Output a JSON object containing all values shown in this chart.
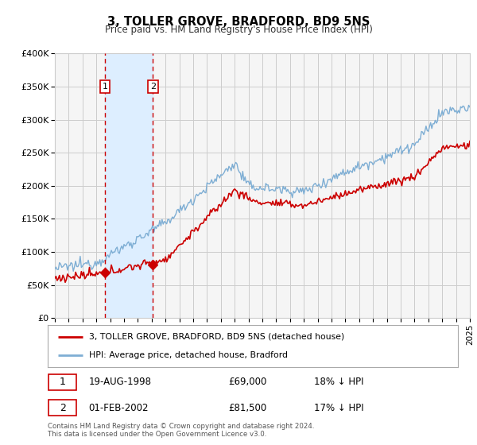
{
  "title": "3, TOLLER GROVE, BRADFORD, BD9 5NS",
  "subtitle": "Price paid vs. HM Land Registry's House Price Index (HPI)",
  "legend_label_red": "3, TOLLER GROVE, BRADFORD, BD9 5NS (detached house)",
  "legend_label_blue": "HPI: Average price, detached house, Bradford",
  "footer": "Contains HM Land Registry data © Crown copyright and database right 2024.\nThis data is licensed under the Open Government Licence v3.0.",
  "sale1_date": "19-AUG-1998",
  "sale1_price": "£69,000",
  "sale1_hpi": "18% ↓ HPI",
  "sale2_date": "01-FEB-2002",
  "sale2_price": "£81,500",
  "sale2_hpi": "17% ↓ HPI",
  "sale1_x": 1998.63,
  "sale1_y": 69000,
  "sale2_x": 2002.08,
  "sale2_y": 81500,
  "vline1_x": 1998.63,
  "vline2_x": 2002.08,
  "shade_x1": 1998.63,
  "shade_x2": 2002.08,
  "ylim": [
    0,
    400000
  ],
  "xlim": [
    1995,
    2025
  ],
  "yticks": [
    0,
    50000,
    100000,
    150000,
    200000,
    250000,
    300000,
    350000,
    400000
  ],
  "ytick_labels": [
    "£0",
    "£50K",
    "£100K",
    "£150K",
    "£200K",
    "£250K",
    "£300K",
    "£350K",
    "£400K"
  ],
  "xticks": [
    1995,
    1996,
    1997,
    1998,
    1999,
    2000,
    2001,
    2002,
    2003,
    2004,
    2005,
    2006,
    2007,
    2008,
    2009,
    2010,
    2011,
    2012,
    2013,
    2014,
    2015,
    2016,
    2017,
    2018,
    2019,
    2020,
    2021,
    2022,
    2023,
    2024,
    2025
  ],
  "red_color": "#cc0000",
  "blue_color": "#7eaed4",
  "shade_color": "#ddeeff",
  "vline_color": "#cc0000",
  "grid_color": "#cccccc",
  "bg_color": "#ffffff",
  "plot_bg_color": "#f5f5f5"
}
